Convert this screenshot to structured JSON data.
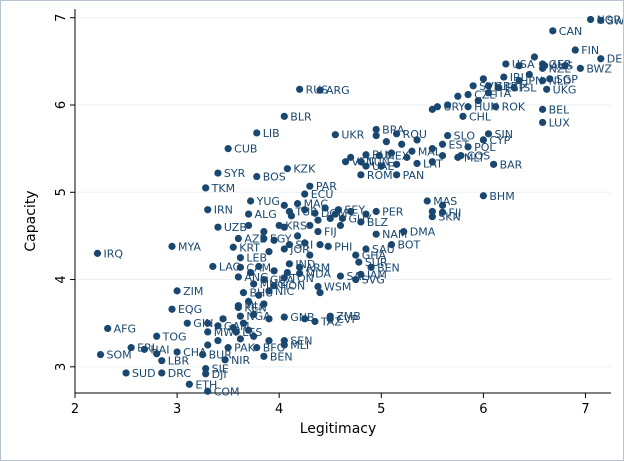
{
  "chart_data": {
    "type": "scatter",
    "xlabel": "Legitimacy",
    "ylabel": "Capacity",
    "xlim": [
      2,
      7.25
    ],
    "ylim": [
      2.7,
      7.1
    ],
    "xticks": [
      2,
      3,
      4,
      5,
      6,
      7
    ],
    "yticks": [
      3,
      4,
      5,
      6,
      7
    ],
    "grid": "horizontal",
    "marker_color": "#1a476f",
    "points": [
      {
        "label": "NOR",
        "x": 7.05,
        "y": 6.98
      },
      {
        "label": "SWE",
        "x": 7.15,
        "y": 6.97
      },
      {
        "label": "CAN",
        "x": 6.68,
        "y": 6.85
      },
      {
        "label": "FIN",
        "x": 6.9,
        "y": 6.63
      },
      {
        "label": "DEN",
        "x": 7.15,
        "y": 6.53
      },
      {
        "label": "USA",
        "x": 6.22,
        "y": 6.47
      },
      {
        "label": "GER",
        "x": 6.58,
        "y": 6.47
      },
      {
        "label": "AUS",
        "x": 6.6,
        "y": 6.45
      },
      {
        "label": "NZL",
        "x": 6.58,
        "y": 6.42
      },
      {
        "label": "BWZ",
        "x": 6.95,
        "y": 6.42
      },
      {
        "label": "IRL",
        "x": 6.2,
        "y": 6.32
      },
      {
        "label": "JPN",
        "x": 6.35,
        "y": 6.28
      },
      {
        "label": "NLD",
        "x": 6.58,
        "y": 6.28
      },
      {
        "label": "SGP",
        "x": 6.65,
        "y": 6.3
      },
      {
        "label": "GBR",
        "x": 6.05,
        "y": 6.22
      },
      {
        "label": "ISL",
        "x": 6.3,
        "y": 6.2
      },
      {
        "label": "SVN",
        "x": 5.9,
        "y": 6.22
      },
      {
        "label": "ESP",
        "x": 6.15,
        "y": 6.2
      },
      {
        "label": "UKG",
        "x": 6.62,
        "y": 6.18
      },
      {
        "label": "ARG",
        "x": 4.4,
        "y": 6.17
      },
      {
        "label": "CZE",
        "x": 5.85,
        "y": 6.12
      },
      {
        "label": "ITA",
        "x": 6.05,
        "y": 6.14
      },
      {
        "label": "RUS",
        "x": 4.2,
        "y": 6.18
      },
      {
        "label": "HUN",
        "x": 5.85,
        "y": 5.98
      },
      {
        "label": "ROK",
        "x": 6.12,
        "y": 5.98
      },
      {
        "label": "BEL",
        "x": 6.58,
        "y": 5.95
      },
      {
        "label": "URY",
        "x": 5.55,
        "y": 5.98
      },
      {
        "label": "CHL",
        "x": 5.8,
        "y": 5.87
      },
      {
        "label": "BLR",
        "x": 4.05,
        "y": 5.87
      },
      {
        "label": "LUX",
        "x": 6.58,
        "y": 5.8
      },
      {
        "label": "LIB",
        "x": 3.78,
        "y": 5.68
      },
      {
        "label": "UKR",
        "x": 4.55,
        "y": 5.66
      },
      {
        "label": "BRA",
        "x": 4.95,
        "y": 5.72
      },
      {
        "label": "ROU",
        "x": 5.15,
        "y": 5.67
      },
      {
        "label": "SIN",
        "x": 6.05,
        "y": 5.67
      },
      {
        "label": "SLO",
        "x": 5.65,
        "y": 5.65
      },
      {
        "label": "CYP",
        "x": 6.0,
        "y": 5.6
      },
      {
        "label": "EST",
        "x": 5.6,
        "y": 5.55
      },
      {
        "label": "POL",
        "x": 5.85,
        "y": 5.52
      },
      {
        "label": "MAL",
        "x": 5.3,
        "y": 5.47
      },
      {
        "label": "CUB",
        "x": 3.5,
        "y": 5.5
      },
      {
        "label": "MEX",
        "x": 4.98,
        "y": 5.42
      },
      {
        "label": "BUL",
        "x": 4.85,
        "y": 5.43
      },
      {
        "label": "MLT",
        "x": 5.75,
        "y": 5.4
      },
      {
        "label": "COS",
        "x": 5.78,
        "y": 5.42
      },
      {
        "label": "LAT",
        "x": 5.35,
        "y": 5.33
      },
      {
        "label": "BAR",
        "x": 6.1,
        "y": 5.32
      },
      {
        "label": "VEN",
        "x": 4.65,
        "y": 5.35
      },
      {
        "label": "TUN",
        "x": 4.8,
        "y": 5.35
      },
      {
        "label": "UAE",
        "x": 4.85,
        "y": 5.3
      },
      {
        "label": "KZK",
        "x": 4.08,
        "y": 5.27
      },
      {
        "label": "SYR",
        "x": 3.4,
        "y": 5.22
      },
      {
        "label": "BOS",
        "x": 3.78,
        "y": 5.18
      },
      {
        "label": "ROM",
        "x": 4.8,
        "y": 5.2
      },
      {
        "label": "PAN",
        "x": 5.15,
        "y": 5.2
      },
      {
        "label": "TKM",
        "x": 3.28,
        "y": 5.05
      },
      {
        "label": "PAR",
        "x": 4.3,
        "y": 5.07
      },
      {
        "label": "ECU",
        "x": 4.25,
        "y": 4.98
      },
      {
        "label": "BHM",
        "x": 6.0,
        "y": 4.96
      },
      {
        "label": "YUG",
        "x": 3.72,
        "y": 4.9
      },
      {
        "label": "MAC",
        "x": 4.18,
        "y": 4.87
      },
      {
        "label": "MAS",
        "x": 5.45,
        "y": 4.9
      },
      {
        "label": "SEY",
        "x": 4.58,
        "y": 4.8
      },
      {
        "label": "IRN",
        "x": 3.3,
        "y": 4.8
      },
      {
        "label": "PER",
        "x": 4.95,
        "y": 4.78
      },
      {
        "label": "FJI",
        "x": 5.6,
        "y": 4.77
      },
      {
        "label": "ALG",
        "x": 3.7,
        "y": 4.75
      },
      {
        "label": "SKN",
        "x": 5.5,
        "y": 4.72
      },
      {
        "label": "TUR",
        "x": 4.1,
        "y": 4.78
      },
      {
        "label": "DOM",
        "x": 4.35,
        "y": 4.76
      },
      {
        "label": "GUY",
        "x": 4.62,
        "y": 4.7
      },
      {
        "label": "BLZ",
        "x": 4.8,
        "y": 4.66
      },
      {
        "label": "UZB",
        "x": 3.4,
        "y": 4.6
      },
      {
        "label": "KRS",
        "x": 4.0,
        "y": 4.62
      },
      {
        "label": "FIJ",
        "x": 4.38,
        "y": 4.55
      },
      {
        "label": "NAM",
        "x": 4.95,
        "y": 4.52
      },
      {
        "label": "DMA",
        "x": 5.22,
        "y": 4.55
      },
      {
        "label": "AZE",
        "x": 3.6,
        "y": 4.47
      },
      {
        "label": "EGY",
        "x": 3.85,
        "y": 4.47
      },
      {
        "label": "BOT",
        "x": 5.1,
        "y": 4.4
      },
      {
        "label": "IRQ",
        "x": 2.22,
        "y": 4.3
      },
      {
        "label": "MYA",
        "x": 2.95,
        "y": 4.38
      },
      {
        "label": "KRT",
        "x": 3.55,
        "y": 4.37
      },
      {
        "label": "SRI",
        "x": 4.1,
        "y": 4.4
      },
      {
        "label": "PHI",
        "x": 4.48,
        "y": 4.38
      },
      {
        "label": "SAU",
        "x": 4.85,
        "y": 4.35
      },
      {
        "label": "JOR",
        "x": 4.05,
        "y": 4.35
      },
      {
        "label": "LEB",
        "x": 3.62,
        "y": 4.25
      },
      {
        "label": "GHA",
        "x": 4.75,
        "y": 4.28
      },
      {
        "label": "IND",
        "x": 4.1,
        "y": 4.18
      },
      {
        "label": "LAO",
        "x": 3.35,
        "y": 4.15
      },
      {
        "label": "CAM",
        "x": 3.62,
        "y": 4.14
      },
      {
        "label": "ARM",
        "x": 4.2,
        "y": 4.14
      },
      {
        "label": "SUR",
        "x": 4.78,
        "y": 4.2
      },
      {
        "label": "BEN",
        "x": 4.9,
        "y": 4.14
      },
      {
        "label": "MDA",
        "x": 4.2,
        "y": 4.07
      },
      {
        "label": "SAL",
        "x": 4.6,
        "y": 4.04
      },
      {
        "label": "JAM",
        "x": 4.8,
        "y": 4.06
      },
      {
        "label": "SVG",
        "x": 4.75,
        "y": 4.0
      },
      {
        "label": "GUA",
        "x": 3.85,
        "y": 4.0
      },
      {
        "label": "TON",
        "x": 4.05,
        "y": 4.02
      },
      {
        "label": "ANG",
        "x": 3.6,
        "y": 4.03
      },
      {
        "label": "WSM",
        "x": 4.38,
        "y": 3.92
      },
      {
        "label": "MNG",
        "x": 3.75,
        "y": 3.95
      },
      {
        "label": "HON",
        "x": 3.95,
        "y": 3.93
      },
      {
        "label": "ZIM",
        "x": 3.0,
        "y": 3.87
      },
      {
        "label": "NIC",
        "x": 3.9,
        "y": 3.87
      },
      {
        "label": "BHU",
        "x": 3.65,
        "y": 3.85
      },
      {
        "label": "MLI",
        "x": 3.6,
        "y": 3.7
      },
      {
        "label": "KEN",
        "x": 3.6,
        "y": 3.68
      },
      {
        "label": "EQG",
        "x": 2.95,
        "y": 3.66
      },
      {
        "label": "NGA",
        "x": 3.62,
        "y": 3.58
      },
      {
        "label": "GNB",
        "x": 4.05,
        "y": 3.57
      },
      {
        "label": "TAZ",
        "x": 4.35,
        "y": 3.52
      },
      {
        "label": "ZMB",
        "x": 4.5,
        "y": 3.58
      },
      {
        "label": "CVP",
        "x": 4.5,
        "y": 3.55
      },
      {
        "label": "GIN",
        "x": 3.1,
        "y": 3.5
      },
      {
        "label": "GAM",
        "x": 3.4,
        "y": 3.47
      },
      {
        "label": "AFG",
        "x": 2.32,
        "y": 3.44
      },
      {
        "label": "TOG",
        "x": 2.8,
        "y": 3.35
      },
      {
        "label": "MWI",
        "x": 3.3,
        "y": 3.4
      },
      {
        "label": "LES",
        "x": 3.58,
        "y": 3.4
      },
      {
        "label": "SEN",
        "x": 4.05,
        "y": 3.3
      },
      {
        "label": "ERI",
        "x": 2.55,
        "y": 3.22
      },
      {
        "label": "PAK",
        "x": 3.5,
        "y": 3.22
      },
      {
        "label": "HAI",
        "x": 2.68,
        "y": 3.2
      },
      {
        "label": "CHA",
        "x": 3.0,
        "y": 3.17
      },
      {
        "label": "BFO",
        "x": 3.78,
        "y": 3.22
      },
      {
        "label": "MLI",
        "x": 4.05,
        "y": 3.25
      },
      {
        "label": "SOM",
        "x": 2.25,
        "y": 3.14
      },
      {
        "label": "BUR",
        "x": 3.25,
        "y": 3.14
      },
      {
        "label": "BEN",
        "x": 3.85,
        "y": 3.12
      },
      {
        "label": "LBR",
        "x": 2.85,
        "y": 3.07
      },
      {
        "label": "NIR",
        "x": 3.47,
        "y": 3.08
      },
      {
        "label": "SUD",
        "x": 2.5,
        "y": 2.93
      },
      {
        "label": "DRC",
        "x": 2.85,
        "y": 2.93
      },
      {
        "label": "SIE",
        "x": 3.28,
        "y": 2.98
      },
      {
        "label": "DJI",
        "x": 3.28,
        "y": 2.92
      },
      {
        "label": "ETH",
        "x": 3.12,
        "y": 2.8
      },
      {
        "label": "COM",
        "x": 3.3,
        "y": 2.72
      }
    ],
    "unlabeled_points": [
      {
        "x": 4.05,
        "y": 4.85
      },
      {
        "x": 4.12,
        "y": 4.73
      },
      {
        "x": 4.25,
        "y": 4.8
      },
      {
        "x": 4.45,
        "y": 4.82
      },
      {
        "x": 4.5,
        "y": 4.7
      },
      {
        "x": 4.38,
        "y": 4.68
      },
      {
        "x": 4.6,
        "y": 4.62
      },
      {
        "x": 4.05,
        "y": 4.6
      },
      {
        "x": 4.3,
        "y": 4.62
      },
      {
        "x": 3.7,
        "y": 4.62
      },
      {
        "x": 3.85,
        "y": 4.55
      },
      {
        "x": 4.18,
        "y": 4.5
      },
      {
        "x": 3.95,
        "y": 4.45
      },
      {
        "x": 4.25,
        "y": 4.42
      },
      {
        "x": 4.4,
        "y": 4.4
      },
      {
        "x": 3.9,
        "y": 4.32
      },
      {
        "x": 4.3,
        "y": 4.28
      },
      {
        "x": 3.8,
        "y": 4.15
      },
      {
        "x": 3.95,
        "y": 4.1
      },
      {
        "x": 4.08,
        "y": 4.08
      },
      {
        "x": 3.72,
        "y": 4.08
      },
      {
        "x": 4.4,
        "y": 3.85
      },
      {
        "x": 3.8,
        "y": 3.82
      },
      {
        "x": 3.7,
        "y": 3.75
      },
      {
        "x": 3.85,
        "y": 3.72
      },
      {
        "x": 3.75,
        "y": 3.6
      },
      {
        "x": 3.9,
        "y": 3.55
      },
      {
        "x": 3.45,
        "y": 3.55
      },
      {
        "x": 3.3,
        "y": 3.5
      },
      {
        "x": 3.65,
        "y": 3.5
      },
      {
        "x": 3.55,
        "y": 3.45
      },
      {
        "x": 3.7,
        "y": 3.42
      },
      {
        "x": 3.62,
        "y": 3.32
      },
      {
        "x": 3.75,
        "y": 3.35
      },
      {
        "x": 3.9,
        "y": 3.3
      },
      {
        "x": 4.25,
        "y": 3.55
      },
      {
        "x": 3.4,
        "y": 3.3
      },
      {
        "x": 3.3,
        "y": 3.25
      },
      {
        "x": 2.8,
        "y": 3.15
      },
      {
        "x": 4.95,
        "y": 5.65
      },
      {
        "x": 5.05,
        "y": 5.58
      },
      {
        "x": 5.2,
        "y": 5.55
      },
      {
        "x": 5.35,
        "y": 5.6
      },
      {
        "x": 5.5,
        "y": 5.5
      },
      {
        "x": 5.1,
        "y": 5.45
      },
      {
        "x": 5.25,
        "y": 5.4
      },
      {
        "x": 5.5,
        "y": 5.35
      },
      {
        "x": 5.6,
        "y": 5.42
      },
      {
        "x": 4.7,
        "y": 5.4
      },
      {
        "x": 5.0,
        "y": 5.3
      },
      {
        "x": 5.15,
        "y": 5.32
      },
      {
        "x": 5.5,
        "y": 5.95
      },
      {
        "x": 5.65,
        "y": 6.0
      },
      {
        "x": 5.95,
        "y": 6.05
      },
      {
        "x": 5.75,
        "y": 6.1
      },
      {
        "x": 6.0,
        "y": 6.3
      },
      {
        "x": 6.45,
        "y": 6.35
      },
      {
        "x": 6.35,
        "y": 6.45
      },
      {
        "x": 6.8,
        "y": 6.45
      },
      {
        "x": 6.5,
        "y": 6.55
      },
      {
        "x": 5.6,
        "y": 4.85
      },
      {
        "x": 5.5,
        "y": 4.78
      },
      {
        "x": 4.85,
        "y": 4.75
      },
      {
        "x": 4.7,
        "y": 4.78
      },
      {
        "x": 4.55,
        "y": 4.75
      }
    ]
  }
}
